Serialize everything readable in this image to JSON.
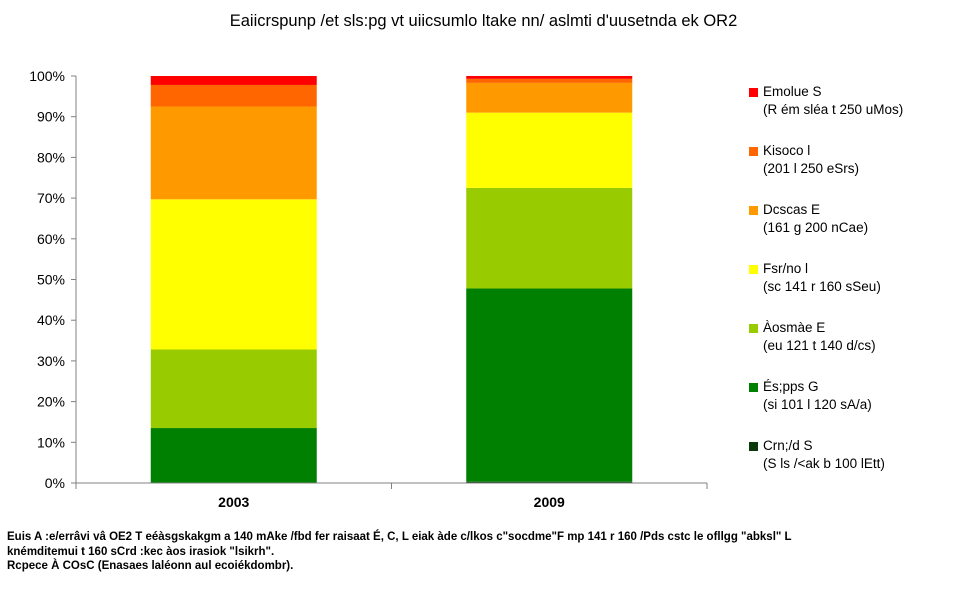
{
  "chart_data": {
    "type": "bar",
    "stacked": true,
    "title": "Eaiicrspunp /et sls:pg vt uiicsumlo ltake nn/ aslmti d'uusetnda ek OR2",
    "categories": [
      "2003",
      "2009"
    ],
    "ylim": [
      0,
      100
    ],
    "yticks": [
      "0%",
      "10%",
      "20%",
      "30%",
      "40%",
      "50%",
      "60%",
      "70%",
      "80%",
      "90%",
      "100%"
    ],
    "xlabel": "",
    "ylabel": "",
    "legend_position": "right",
    "series": [
      {
        "name": "Crn;/d S",
        "sub": "(S ls /<ak b 100 lEtt)",
        "color": "#0a3a0a",
        "values": [
          0,
          0.3
        ]
      },
      {
        "name": "És;pps G",
        "sub": "(si 101 l 120 sA/a)",
        "color": "#008000",
        "values": [
          13.5,
          47.5
        ]
      },
      {
        "name": "Àosmàe E",
        "sub": "(eu 121 t 140 d/cs)",
        "color": "#99cc00",
        "values": [
          19.3,
          24.7
        ]
      },
      {
        "name": "Fsr/no l",
        "sub": "(sc 141 r 160 sSeu)",
        "color": "#ffff00",
        "values": [
          36.9,
          18.5
        ]
      },
      {
        "name": "Dcscas E",
        "sub": "(161 g 200 nCae)",
        "color": "#ff9900",
        "values": [
          22.8,
          7.3
        ]
      },
      {
        "name": "Kisoco l",
        "sub": "(201 l 250 eSrs)",
        "color": "#ff6600",
        "values": [
          5.3,
          1.0
        ]
      },
      {
        "name": "Emolue S",
        "sub": "(R ém sléa t 250 uMos)",
        "color": "#ff0000",
        "values": [
          2.2,
          0.7
        ]
      }
    ]
  },
  "footnote": {
    "line1": "Euis A :e/errâvi vâ OE2 T eéàsgskakgm a 140 mAke /fbd fer raisaat É, C, L  eiak àde c/lkos c\"socdme\"F mp 141 r 160 /Pds cstc le ofllgg \"abksl\" L",
    "line2": "knémditemui t 160 sCrd :kec àos irasiok \"lsikrh\".",
    "line3": "Rcpece À COsC (Enasaes laléonn aul ecoiékdombr)."
  }
}
